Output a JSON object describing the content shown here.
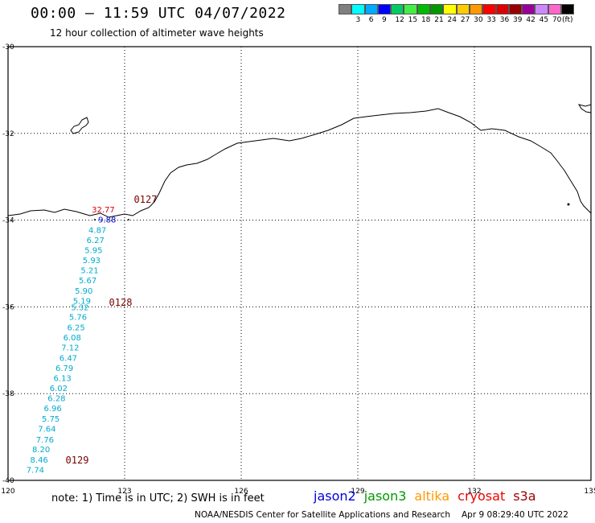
{
  "header": {
    "title": "00:00 – 11:59 UTC 04/07/2022",
    "subtitle": "12 hour collection of altimeter wave heights"
  },
  "legend": {
    "unit": "(ft)",
    "items": [
      {
        "label": "",
        "color": "#808080"
      },
      {
        "label": "3",
        "color": "#00ffff"
      },
      {
        "label": "6",
        "color": "#00aaff"
      },
      {
        "label": "9",
        "color": "#0000ff"
      },
      {
        "label": "12",
        "color": "#00cc66"
      },
      {
        "label": "15",
        "color": "#44ee44"
      },
      {
        "label": "18",
        "color": "#00bb00"
      },
      {
        "label": "21",
        "color": "#009900"
      },
      {
        "label": "24",
        "color": "#ffff00"
      },
      {
        "label": "27",
        "color": "#ffcc00"
      },
      {
        "label": "30",
        "color": "#ff9900"
      },
      {
        "label": "33",
        "color": "#ff0000"
      },
      {
        "label": "36",
        "color": "#dd0000"
      },
      {
        "label": "39",
        "color": "#990000"
      },
      {
        "label": "42",
        "color": "#990099"
      },
      {
        "label": "45",
        "color": "#cc88ff"
      },
      {
        "label": "70",
        "color": "#ff66cc"
      },
      {
        "label": "",
        "color": "#000000"
      }
    ]
  },
  "map": {
    "lat_labels": [
      "-30",
      "-32",
      "-34",
      "-36",
      "-38",
      "-40"
    ],
    "lon_labels": [
      "120",
      "123",
      "126",
      "129",
      "132",
      "135"
    ],
    "time_labels": [
      "0127",
      "0128",
      "0129"
    ],
    "time_label_color": "#7a0000",
    "observations": [
      {
        "lon": 122.45,
        "lat": -33.75,
        "value": "32.77",
        "color": "#dd0000"
      },
      {
        "lon": 122.55,
        "lat": -33.98,
        "value": "9.88",
        "color": "#0000cc"
      },
      {
        "lon": 122.3,
        "lat": -34.22,
        "value": "4.87",
        "color": "#00aacc"
      },
      {
        "lon": 122.25,
        "lat": -34.45,
        "value": "6.27",
        "color": "#00aacc"
      },
      {
        "lon": 122.2,
        "lat": -34.68,
        "value": "5.95",
        "color": "#00aacc"
      },
      {
        "lon": 122.15,
        "lat": -34.92,
        "value": "5.93",
        "color": "#00aacc"
      },
      {
        "lon": 122.1,
        "lat": -35.15,
        "value": "5.21",
        "color": "#00aacc"
      },
      {
        "lon": 122.05,
        "lat": -35.38,
        "value": "5.67",
        "color": "#00aacc"
      },
      {
        "lon": 121.95,
        "lat": -35.62,
        "value": "5.90",
        "color": "#00aacc"
      },
      {
        "lon": 121.9,
        "lat": -35.85,
        "value": "5.19",
        "color": "#00aacc"
      },
      {
        "lon": 121.85,
        "lat": -36.0,
        "value": "5.32",
        "color": "#00aacc"
      },
      {
        "lon": 121.8,
        "lat": -36.22,
        "value": "5.76",
        "color": "#00aacc"
      },
      {
        "lon": 121.75,
        "lat": -36.47,
        "value": "6.25",
        "color": "#00aacc"
      },
      {
        "lon": 121.65,
        "lat": -36.7,
        "value": "6.08",
        "color": "#00aacc"
      },
      {
        "lon": 121.6,
        "lat": -36.93,
        "value": "7.12",
        "color": "#00aacc"
      },
      {
        "lon": 121.55,
        "lat": -37.17,
        "value": "6.47",
        "color": "#00aacc"
      },
      {
        "lon": 121.45,
        "lat": -37.4,
        "value": "6.79",
        "color": "#00aacc"
      },
      {
        "lon": 121.4,
        "lat": -37.63,
        "value": "6.13",
        "color": "#00aacc"
      },
      {
        "lon": 121.3,
        "lat": -37.87,
        "value": "6.02",
        "color": "#00aacc"
      },
      {
        "lon": 121.25,
        "lat": -38.1,
        "value": "6.28",
        "color": "#00aacc"
      },
      {
        "lon": 121.15,
        "lat": -38.33,
        "value": "6.96",
        "color": "#00aacc"
      },
      {
        "lon": 121.1,
        "lat": -38.57,
        "value": "5.75",
        "color": "#00aacc"
      },
      {
        "lon": 121.0,
        "lat": -38.8,
        "value": "7.64",
        "color": "#00aacc"
      },
      {
        "lon": 120.95,
        "lat": -39.05,
        "value": "7.76",
        "color": "#00aacc"
      },
      {
        "lon": 120.85,
        "lat": -39.28,
        "value": "8.20",
        "color": "#00aacc"
      },
      {
        "lon": 120.8,
        "lat": -39.52,
        "value": "8.46",
        "color": "#00aacc"
      },
      {
        "lon": 120.7,
        "lat": -39.75,
        "value": "7.74",
        "color": "#00aacc"
      }
    ]
  },
  "footer": {
    "note": "note: 1) Time is in UTC; 2) SWH is in feet",
    "satellites": [
      {
        "name": "jason2",
        "color": "#0000dd"
      },
      {
        "name": "jason3",
        "color": "#009900"
      },
      {
        "name": "altika",
        "color": "#ff9900"
      },
      {
        "name": "cryosat",
        "color": "#ee0000"
      },
      {
        "name": "s3a",
        "color": "#990000"
      }
    ],
    "credit": "NOAA/NESDIS Center for Satellite Applications and Research",
    "timestamp": "Apr  9 08:29:40 UTC 2022"
  }
}
